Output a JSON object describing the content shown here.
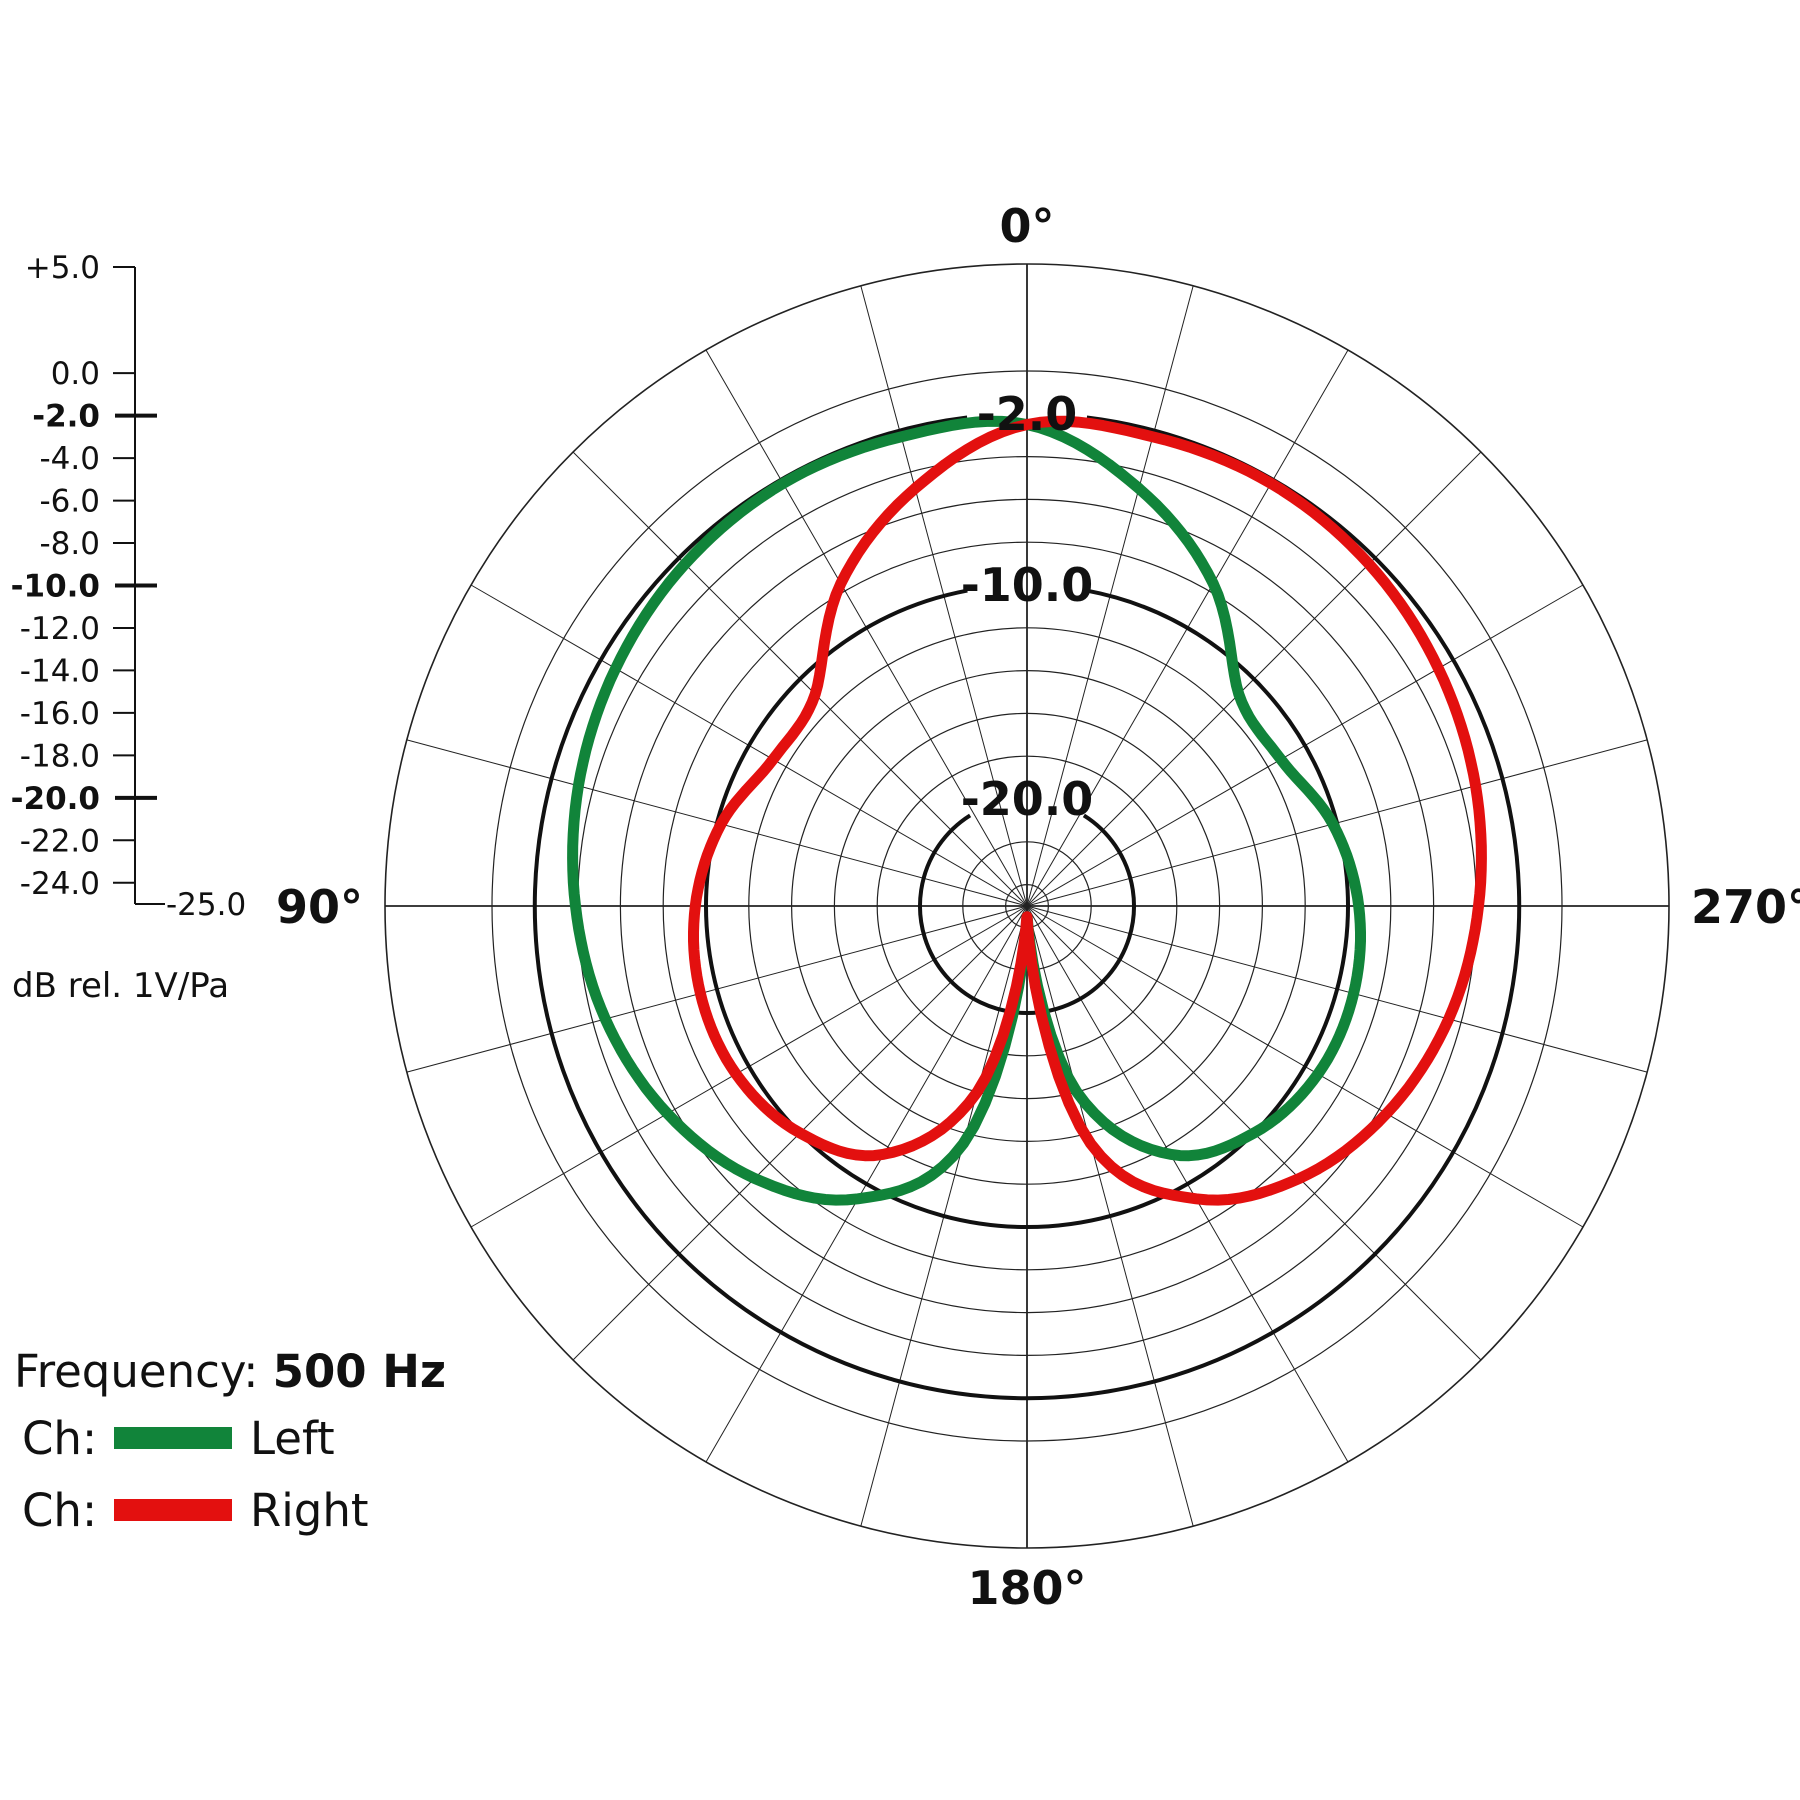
{
  "chart_data": {
    "type": "polar",
    "frequency": {
      "label": "Frequency:",
      "value": "500 Hz"
    },
    "unit_label": "dB rel. 1V/Pa",
    "r_range": [
      -25,
      5
    ],
    "scale_ticks": [
      {
        "value": 5,
        "label": "+5.0",
        "major": false
      },
      {
        "value": 0,
        "label": "0.0",
        "major": false
      },
      {
        "value": -2,
        "label": "-2.0",
        "major": true
      },
      {
        "value": -4,
        "label": "-4.0",
        "major": false
      },
      {
        "value": -6,
        "label": "-6.0",
        "major": false
      },
      {
        "value": -8,
        "label": "-8.0",
        "major": false
      },
      {
        "value": -10,
        "label": "-10.0",
        "major": true
      },
      {
        "value": -12,
        "label": "-12.0",
        "major": false
      },
      {
        "value": -14,
        "label": "-14.0",
        "major": false
      },
      {
        "value": -16,
        "label": "-16.0",
        "major": false
      },
      {
        "value": -18,
        "label": "-18.0",
        "major": false
      },
      {
        "value": -20,
        "label": "-20.0",
        "major": true
      },
      {
        "value": -22,
        "label": "-22.0",
        "major": false
      },
      {
        "value": -24,
        "label": "-24.0",
        "major": false
      }
    ],
    "scale_min_label": "-25.0",
    "minor_rings": [
      -24,
      -22,
      -18,
      -16,
      -14,
      -12,
      -8,
      -6,
      -4,
      0,
      5
    ],
    "major_rings": [
      {
        "value": -20,
        "label": "-20.0"
      },
      {
        "value": -10,
        "label": "-10.0"
      },
      {
        "value": -2,
        "label": "-2.0"
      }
    ],
    "angle_step_deg": 15,
    "angle_labels": [
      {
        "angle": 0,
        "label": "0°"
      },
      {
        "angle": 90,
        "label": "90°"
      },
      {
        "angle": 180,
        "label": "180°"
      },
      {
        "angle": 270,
        "label": "270°"
      }
    ],
    "series": [
      {
        "name": "Left",
        "color": "#11843a",
        "points": [
          [
            0,
            -2.5
          ],
          [
            15,
            -2.3
          ],
          [
            30,
            -2.2
          ],
          [
            45,
            -2.4
          ],
          [
            60,
            -2.8
          ],
          [
            75,
            -3.3
          ],
          [
            90,
            -3.9
          ],
          [
            105,
            -4.6
          ],
          [
            120,
            -5.6
          ],
          [
            135,
            -7.0
          ],
          [
            150,
            -9.2
          ],
          [
            165,
            -13.5
          ],
          [
            180,
            -24.5
          ],
          [
            195,
            -16.0
          ],
          [
            210,
            -11.6
          ],
          [
            225,
            -10.0
          ],
          [
            240,
            -9.3
          ],
          [
            255,
            -9.2
          ],
          [
            270,
            -9.5
          ],
          [
            285,
            -10.2
          ],
          [
            300,
            -11.3
          ],
          [
            315,
            -11.0
          ],
          [
            330,
            -7.6
          ],
          [
            345,
            -4.8
          ]
        ]
      },
      {
        "name": "Right",
        "color": "#e3100f",
        "points": [
          [
            0,
            -2.5
          ],
          [
            345,
            -2.3
          ],
          [
            330,
            -2.2
          ],
          [
            315,
            -2.4
          ],
          [
            300,
            -2.8
          ],
          [
            285,
            -3.3
          ],
          [
            270,
            -3.9
          ],
          [
            255,
            -4.6
          ],
          [
            240,
            -5.6
          ],
          [
            225,
            -7.0
          ],
          [
            210,
            -9.2
          ],
          [
            195,
            -13.5
          ],
          [
            180,
            -24.5
          ],
          [
            165,
            -16.0
          ],
          [
            150,
            -11.6
          ],
          [
            135,
            -10.0
          ],
          [
            120,
            -9.3
          ],
          [
            105,
            -9.2
          ],
          [
            90,
            -9.5
          ],
          [
            75,
            -10.2
          ],
          [
            60,
            -11.3
          ],
          [
            45,
            -11.0
          ],
          [
            30,
            -7.6
          ],
          [
            15,
            -4.8
          ]
        ]
      }
    ],
    "legend": {
      "prefix": "Ch:"
    }
  }
}
